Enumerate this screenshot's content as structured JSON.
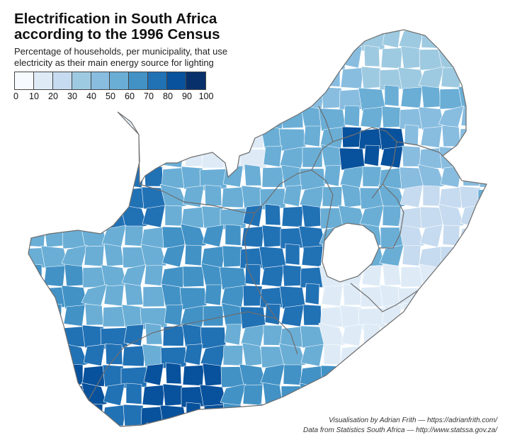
{
  "title": {
    "line1": "Electrification in South Africa",
    "line2": "according to the 1996 Census"
  },
  "subtitle": {
    "line1": "Percentage of households, per municipality, that use",
    "line2": "electricity as their main energy source for lighting"
  },
  "legend": {
    "colors": [
      "#f7fbff",
      "#deebf7",
      "#c6dbef",
      "#9ecae1",
      "#88bde0",
      "#6aaed6",
      "#4292c6",
      "#2171b5",
      "#08519c",
      "#08306b"
    ],
    "ticks": [
      "0",
      "10",
      "20",
      "30",
      "40",
      "50",
      "60",
      "70",
      "80",
      "90",
      "100"
    ]
  },
  "credits": {
    "line1": "Visualisation by Adrian Frith — https://adrianfrith.com/",
    "line2": "Data from Statistics South Africa — http://www.statssa.gov.za/"
  },
  "map_style": {
    "border_color": "#6e6e6e",
    "lesotho_fill": "#ffffff"
  }
}
